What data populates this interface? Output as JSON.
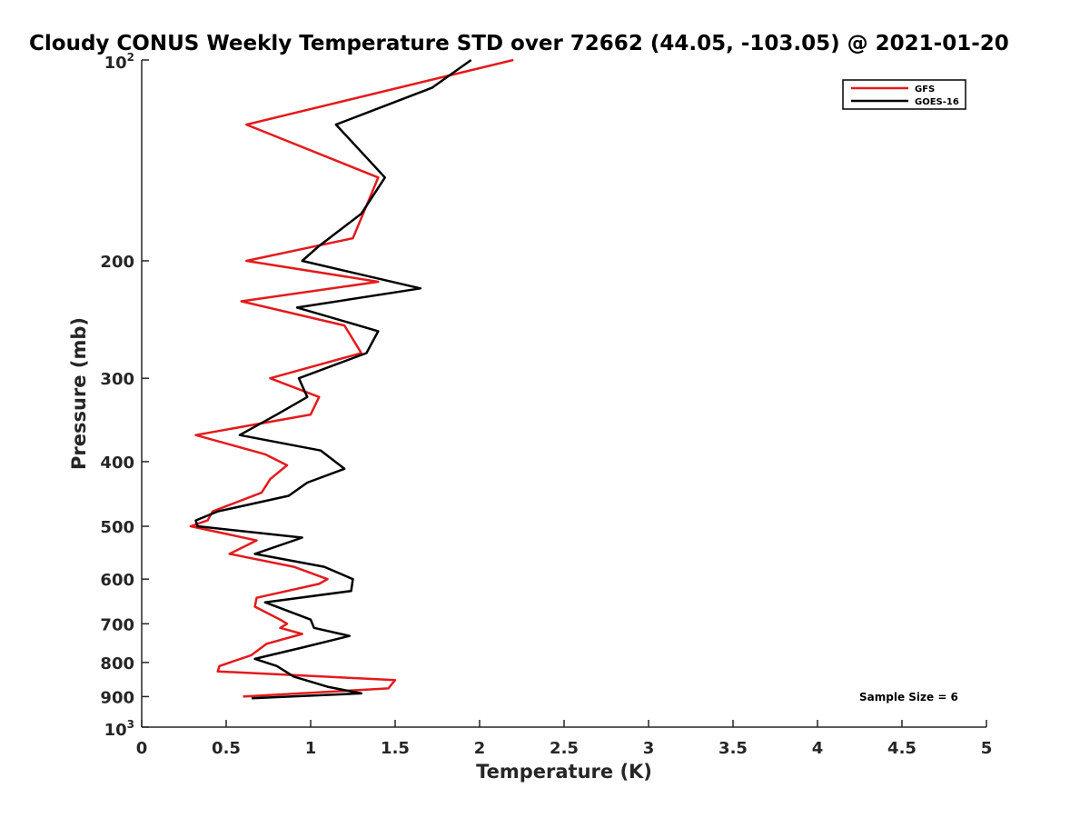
{
  "chart_data": {
    "type": "line",
    "title": "Cloudy CONUS Weekly Temperature STD over 72662 (44.05, -103.05) @ 2021-01-20",
    "xlabel": "Temperature (K)",
    "ylabel": "Pressure (mb)",
    "xlim": [
      0,
      5
    ],
    "ylim": [
      100,
      1000
    ],
    "y_scale": "log",
    "y_reversed": true,
    "x_ticks": [
      "0",
      "0.5",
      "1",
      "1.5",
      "2",
      "2.5",
      "3",
      "3.5",
      "4",
      "4.5",
      "5"
    ],
    "y_ticks": [
      {
        "value": 100,
        "base": "10",
        "exp": "2"
      },
      {
        "value": 200,
        "label": "200"
      },
      {
        "value": 300,
        "label": "300"
      },
      {
        "value": 400,
        "label": "400"
      },
      {
        "value": 500,
        "label": "500"
      },
      {
        "value": 600,
        "label": "600"
      },
      {
        "value": 700,
        "label": "700"
      },
      {
        "value": 800,
        "label": "800"
      },
      {
        "value": 900,
        "label": "900"
      },
      {
        "value": 1000,
        "base": "10",
        "exp": "3"
      }
    ],
    "grid": false,
    "legend_position": "top-right",
    "annotation": "Sample Size = 6",
    "series": [
      {
        "name": "GFS",
        "color": "#e41a1c",
        "points": [
          [
            2.2,
            100
          ],
          [
            0.62,
            125
          ],
          [
            1.4,
            150
          ],
          [
            1.25,
            185
          ],
          [
            0.62,
            200
          ],
          [
            1.4,
            215
          ],
          [
            0.59,
            230
          ],
          [
            1.2,
            250
          ],
          [
            1.3,
            275
          ],
          [
            0.76,
            300
          ],
          [
            1.05,
            320
          ],
          [
            1.0,
            340
          ],
          [
            0.32,
            365
          ],
          [
            0.73,
            390
          ],
          [
            0.86,
            405
          ],
          [
            0.76,
            425
          ],
          [
            0.71,
            445
          ],
          [
            0.42,
            475
          ],
          [
            0.39,
            490
          ],
          [
            0.29,
            500
          ],
          [
            0.68,
            525
          ],
          [
            0.52,
            550
          ],
          [
            0.9,
            575
          ],
          [
            1.1,
            600
          ],
          [
            1.05,
            610
          ],
          [
            0.68,
            640
          ],
          [
            0.67,
            660
          ],
          [
            0.82,
            690
          ],
          [
            0.86,
            700
          ],
          [
            0.82,
            710
          ],
          [
            0.95,
            725
          ],
          [
            0.74,
            750
          ],
          [
            0.65,
            780
          ],
          [
            0.46,
            810
          ],
          [
            0.45,
            825
          ],
          [
            1.5,
            850
          ],
          [
            1.46,
            875
          ],
          [
            0.6,
            900
          ]
        ]
      },
      {
        "name": "GOES-16",
        "color": "#000000",
        "points": [
          [
            1.95,
            100
          ],
          [
            1.72,
            110
          ],
          [
            1.15,
            125
          ],
          [
            1.44,
            150
          ],
          [
            1.3,
            170
          ],
          [
            1.05,
            190
          ],
          [
            0.95,
            200
          ],
          [
            1.65,
            220
          ],
          [
            0.92,
            235
          ],
          [
            1.4,
            255
          ],
          [
            1.33,
            275
          ],
          [
            0.93,
            300
          ],
          [
            0.98,
            320
          ],
          [
            0.8,
            340
          ],
          [
            0.58,
            365
          ],
          [
            1.06,
            385
          ],
          [
            1.2,
            410
          ],
          [
            0.98,
            430
          ],
          [
            0.87,
            450
          ],
          [
            0.45,
            475
          ],
          [
            0.32,
            490
          ],
          [
            0.33,
            500
          ],
          [
            0.95,
            520
          ],
          [
            0.67,
            550
          ],
          [
            1.08,
            575
          ],
          [
            1.25,
            600
          ],
          [
            1.24,
            625
          ],
          [
            0.73,
            650
          ],
          [
            1.0,
            690
          ],
          [
            1.02,
            710
          ],
          [
            1.23,
            730
          ],
          [
            0.95,
            760
          ],
          [
            0.67,
            790
          ],
          [
            0.8,
            810
          ],
          [
            0.9,
            840
          ],
          [
            1.1,
            870
          ],
          [
            1.3,
            890
          ],
          [
            0.65,
            905
          ]
        ]
      }
    ]
  }
}
